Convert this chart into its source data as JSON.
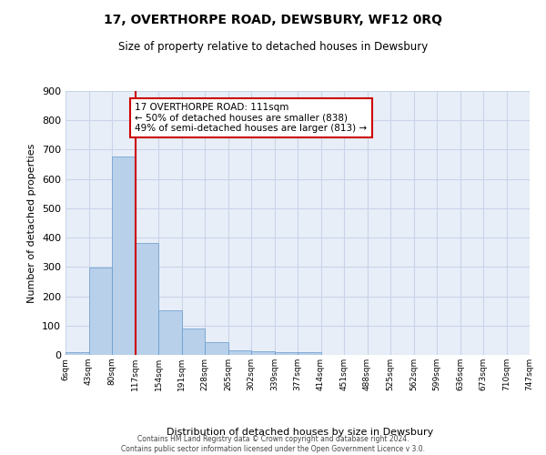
{
  "title": "17, OVERTHORPE ROAD, DEWSBURY, WF12 0RQ",
  "subtitle": "Size of property relative to detached houses in Dewsbury",
  "xlabel": "Distribution of detached houses by size in Dewsbury",
  "ylabel": "Number of detached properties",
  "bar_values": [
    10,
    298,
    676,
    383,
    152,
    90,
    42,
    15,
    12,
    8,
    8,
    0,
    0,
    0,
    0,
    0,
    0,
    0,
    0,
    0
  ],
  "tick_labels": [
    "6sqm",
    "43sqm",
    "80sqm",
    "117sqm",
    "154sqm",
    "191sqm",
    "228sqm",
    "265sqm",
    "302sqm",
    "339sqm",
    "377sqm",
    "414sqm",
    "451sqm",
    "488sqm",
    "525sqm",
    "562sqm",
    "599sqm",
    "636sqm",
    "673sqm",
    "710sqm",
    "747sqm"
  ],
  "bar_color": "#b8d0ea",
  "bar_edge_color": "#6699cc",
  "grid_color": "#c8d4e8",
  "vline_x": 3.0,
  "vline_color": "#cc0000",
  "annotation_text": "17 OVERTHORPE ROAD: 111sqm\n← 50% of detached houses are smaller (838)\n49% of semi-detached houses are larger (813) →",
  "annotation_box_color": "#ffffff",
  "annotation_box_edge": "#cc0000",
  "ylim": [
    0,
    900
  ],
  "yticks": [
    0,
    100,
    200,
    300,
    400,
    500,
    600,
    700,
    800,
    900
  ],
  "footer_line1": "Contains HM Land Registry data © Crown copyright and database right 2024.",
  "footer_line2": "Contains public sector information licensed under the Open Government Licence v 3.0.",
  "background_color": "#ffffff",
  "plot_bg_color": "#e8eef8"
}
